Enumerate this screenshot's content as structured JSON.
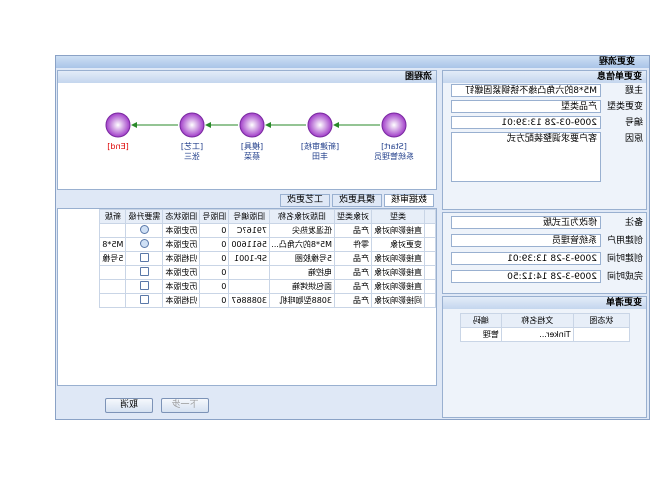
{
  "window": {
    "title": "变更流程"
  },
  "info": {
    "title": "变更单信息",
    "fields": [
      {
        "label": "主题",
        "value": "M5*8的六角凸缘不锈钢紧固螺钉"
      },
      {
        "label": "变更类型",
        "value": "产品类型"
      },
      {
        "label": "编号",
        "value": "2009-03-28 13:39:01"
      },
      {
        "label": "原因",
        "value": "客户要求调整装配方式"
      },
      {
        "label": "备注",
        "value": "修改为正式版"
      },
      {
        "label": "创建用户",
        "value": "系统管理员"
      },
      {
        "label": "创建时间",
        "value": "2009-3-28 13:39:01"
      },
      {
        "label": "完成时间",
        "value": "2009-3-28 14:12:50"
      }
    ],
    "list_title": "变更清单",
    "list_columns": [
      "状态图",
      "文档名称",
      "编码"
    ],
    "list_rows": [
      [
        "",
        "Tinker...",
        "管理"
      ]
    ]
  },
  "flow": {
    "title": "流程图",
    "nodes": [
      {
        "tag": "[Start]",
        "name": "系统管理员"
      },
      {
        "tag": "[新建审核]",
        "name": "丰田"
      },
      {
        "tag": "[模具]",
        "name": "蔡菜"
      },
      {
        "tag": "[工艺]",
        "name": "张三"
      },
      {
        "tag": "[End]",
        "name": ""
      }
    ]
  },
  "tabs": [
    "数据审核",
    "模具更改",
    "工艺更改"
  ],
  "table": {
    "columns": [
      "类型",
      "对象类型",
      "旧版对象名称",
      "旧版编号",
      "旧版号",
      "旧版状态",
      "需要升级",
      "新版"
    ],
    "rows": [
      [
        "直接影响对象",
        "产品",
        "低温发热尖",
        "7916?C",
        "0",
        "历史版本",
        true,
        ""
      ],
      [
        "变更对象",
        "零件",
        "M5*8的六角凸...",
        "5611600",
        "0",
        "历史版本",
        true,
        "M5*8"
      ],
      [
        "直接影响对象",
        "产品",
        "5号橡胶圈",
        "SP-1001",
        "0",
        "归档版本",
        false,
        "5号橡"
      ],
      [
        "直接影响对象",
        "产品",
        "电控箱",
        "",
        "0",
        "历史版本",
        false,
        ""
      ],
      [
        "直接影响对象",
        "产品",
        "面包烘烤箱",
        "",
        "0",
        "历史版本",
        false,
        ""
      ],
      [
        "间接影响对象",
        "产品",
        "3088型咖啡机",
        "3088867",
        "0",
        "归档版本",
        false,
        ""
      ]
    ]
  },
  "buttons": {
    "cancel": "取消",
    "next": "下一步"
  }
}
